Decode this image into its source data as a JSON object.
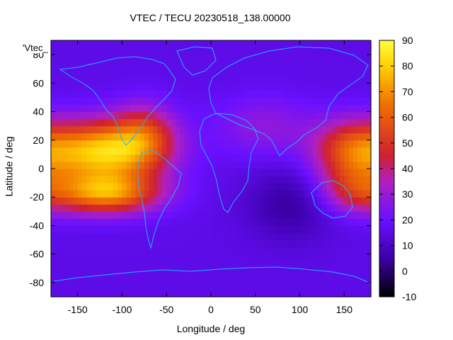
{
  "chart_data": {
    "type": "heatmap",
    "title": "VTEC / TECU 20230518_138.00000",
    "xlabel": "Longitude / deg",
    "ylabel": "Latitude / deg",
    "key_label": "'Vtec_",
    "xlim": [
      -180,
      180
    ],
    "ylim": [
      -90,
      90
    ],
    "xticks": [
      -150,
      -100,
      -50,
      0,
      50,
      100,
      150
    ],
    "yticks": [
      -80,
      -60,
      -40,
      -20,
      0,
      20,
      40,
      60,
      80
    ],
    "colorbar": {
      "min": -10,
      "max": 90,
      "ticks": [
        -10,
        0,
        10,
        20,
        30,
        40,
        50,
        60,
        70,
        80,
        90
      ]
    },
    "grid": false,
    "features": [
      {
        "lon": -120,
        "lat": 12,
        "amp": 62,
        "slon": 45,
        "slat": 15
      },
      {
        "lon": -118,
        "lat": -17,
        "amp": 52,
        "slon": 42,
        "slat": 10
      },
      {
        "lon": -75,
        "lat": 25,
        "amp": 26,
        "slon": 25,
        "slat": 15
      },
      {
        "lon": 160,
        "lat": 13,
        "amp": 38,
        "slon": 32,
        "slat": 15
      },
      {
        "lon": 160,
        "lat": -15,
        "amp": 24,
        "slon": 28,
        "slat": 12
      },
      {
        "lon": 60,
        "lat": 30,
        "amp": 12,
        "slon": 40,
        "slat": 15
      },
      {
        "lon": 90,
        "lat": -25,
        "amp": -12,
        "slon": 35,
        "slat": 18
      }
    ]
  }
}
